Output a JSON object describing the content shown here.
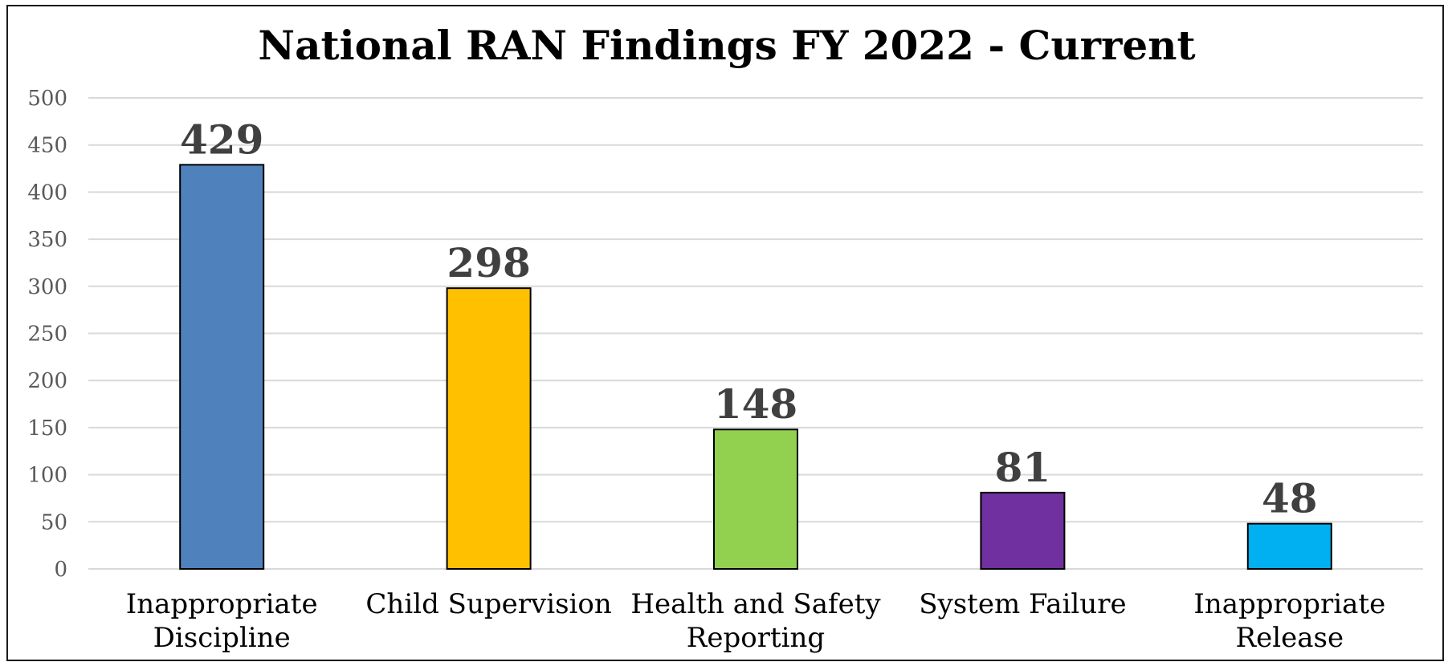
{
  "chart_data": {
    "type": "bar",
    "title": "National RAN Findings FY 2022 - Current",
    "xlabel": "",
    "ylabel": "",
    "ylim": [
      0,
      500
    ],
    "yticks": [
      0,
      50,
      100,
      150,
      200,
      250,
      300,
      350,
      400,
      450,
      500
    ],
    "grid": true,
    "categories": [
      [
        "Inappropriate",
        "Discipline"
      ],
      [
        "Child Supervision"
      ],
      [
        "Health and Safety",
        "Reporting"
      ],
      [
        "System Failure"
      ],
      [
        "Inappropriate",
        "Release"
      ]
    ],
    "values": [
      429,
      298,
      148,
      81,
      48
    ],
    "colors": [
      "#4f81bd",
      "#ffc000",
      "#92d050",
      "#7030a0",
      "#00b0f0"
    ]
  }
}
